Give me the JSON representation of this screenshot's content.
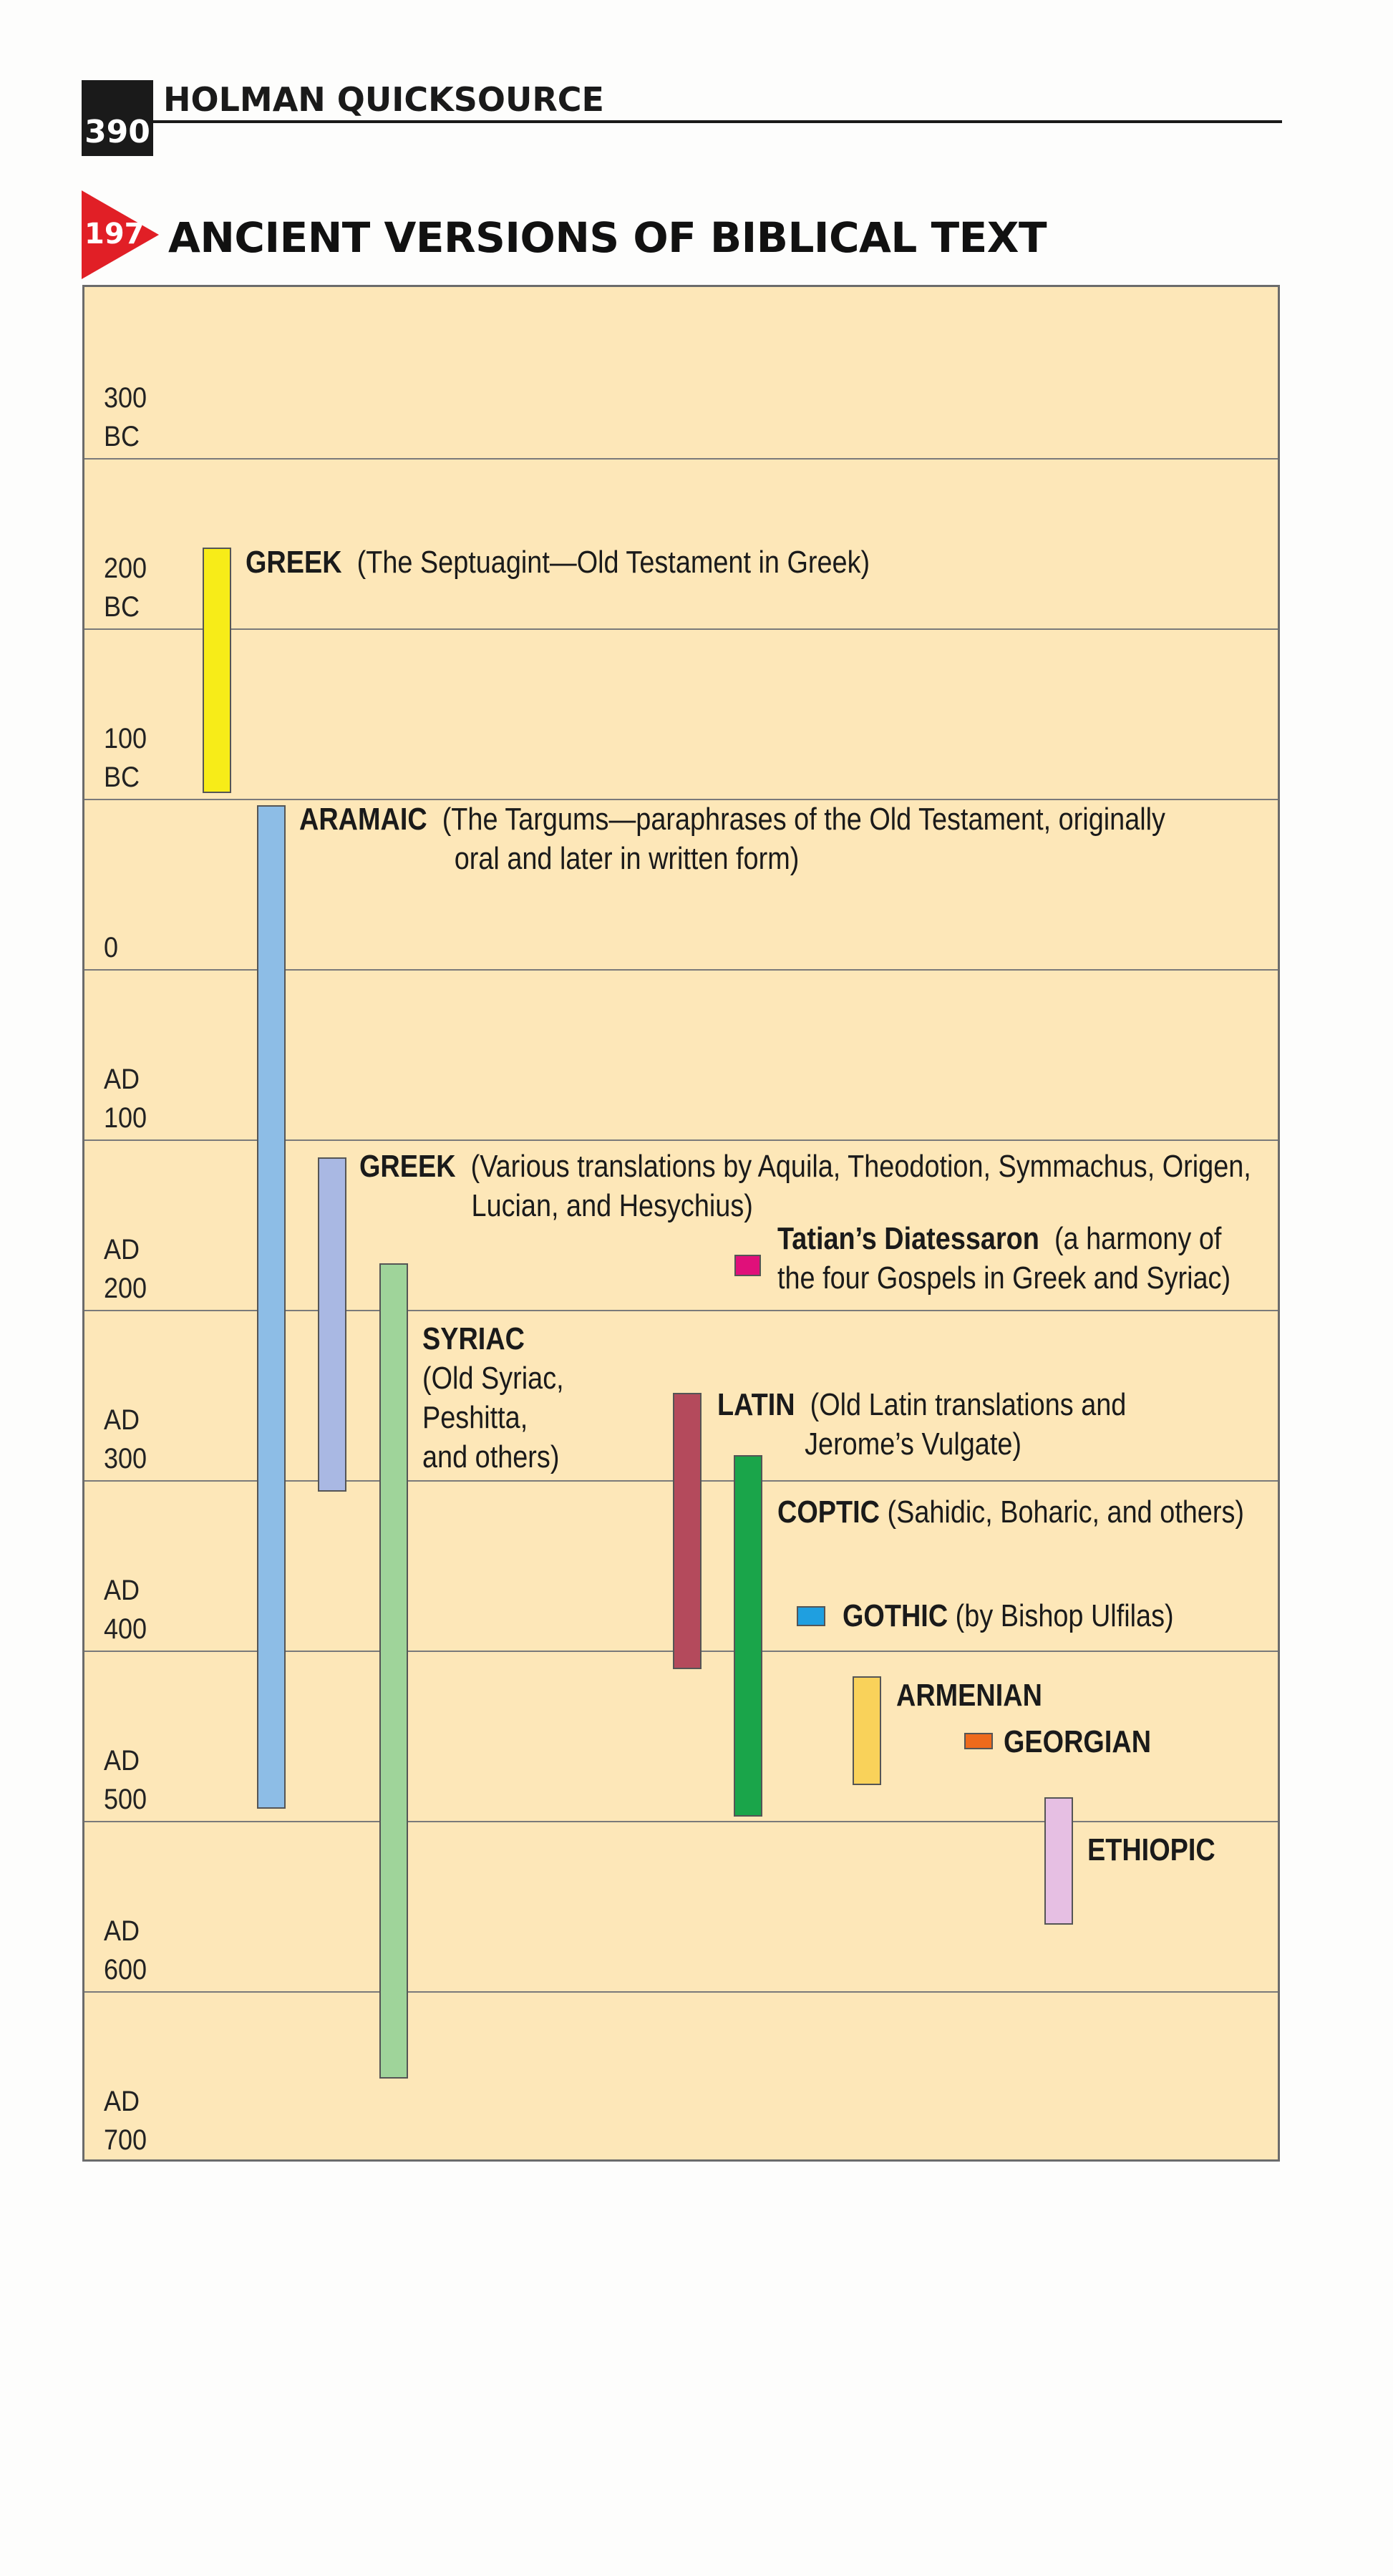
{
  "header": {
    "page_number": "390",
    "book_title": "HOLMAN QUICKSOURCE"
  },
  "figure": {
    "number": "197",
    "title": "ANCIENT VERSIONS OF BIBLICAL TEXT"
  },
  "timeline": {
    "eras": [
      [
        "300",
        "BC"
      ],
      [
        "200",
        "BC"
      ],
      [
        "100",
        "BC"
      ],
      [
        "0",
        ""
      ],
      [
        "AD",
        "100"
      ],
      [
        "AD",
        "200"
      ],
      [
        "AD",
        "300"
      ],
      [
        "AD",
        "400"
      ],
      [
        "AD",
        "500"
      ],
      [
        "AD",
        "600"
      ],
      [
        "AD",
        "700"
      ]
    ],
    "versions": [
      {
        "name": "GREEK",
        "description": "(The Septuagint—Old Testament in Greek)",
        "color": "#f7ec18"
      },
      {
        "name": "ARAMAIC",
        "description_line1": "(The Targums—paraphrases of the Old Testament, originally",
        "description_line2": "oral and later in written form)",
        "color": "#8dbde6"
      },
      {
        "name": "GREEK",
        "description_line1": "(Various translations by Aquila, Theodotion, Symmachus, Origen,",
        "description_line2": "Lucian, and Hesychius)",
        "color": "#a9b8e3"
      },
      {
        "name": "Tatian’s Diatessaron",
        "description_line1": "(a harmony of",
        "description_line2": "the four Gospels in Greek and Syriac)",
        "color": "#e0107a"
      },
      {
        "name": "SYRIAC",
        "description_lines": [
          "(Old Syriac,",
          "Peshitta,",
          "and others)"
        ],
        "color": "#9fd49a"
      },
      {
        "name": "LATIN",
        "description_line1": "(Old Latin translations and",
        "description_line2": "Jerome’s Vulgate)",
        "color": "#b44a5c"
      },
      {
        "name": "COPTIC",
        "description": "(Sahidic, Boharic, and others)",
        "color": "#1aa54a"
      },
      {
        "name": "GOTHIC",
        "description": "(by Bishop Ulfilas)",
        "color": "#1f9fe0"
      },
      {
        "name": "ARMENIAN",
        "color": "#f9d25a"
      },
      {
        "name": "GEORGIAN",
        "color": "#ee6a1c"
      },
      {
        "name": "ETHIOPIC",
        "color": "#e6bfe3"
      }
    ]
  }
}
